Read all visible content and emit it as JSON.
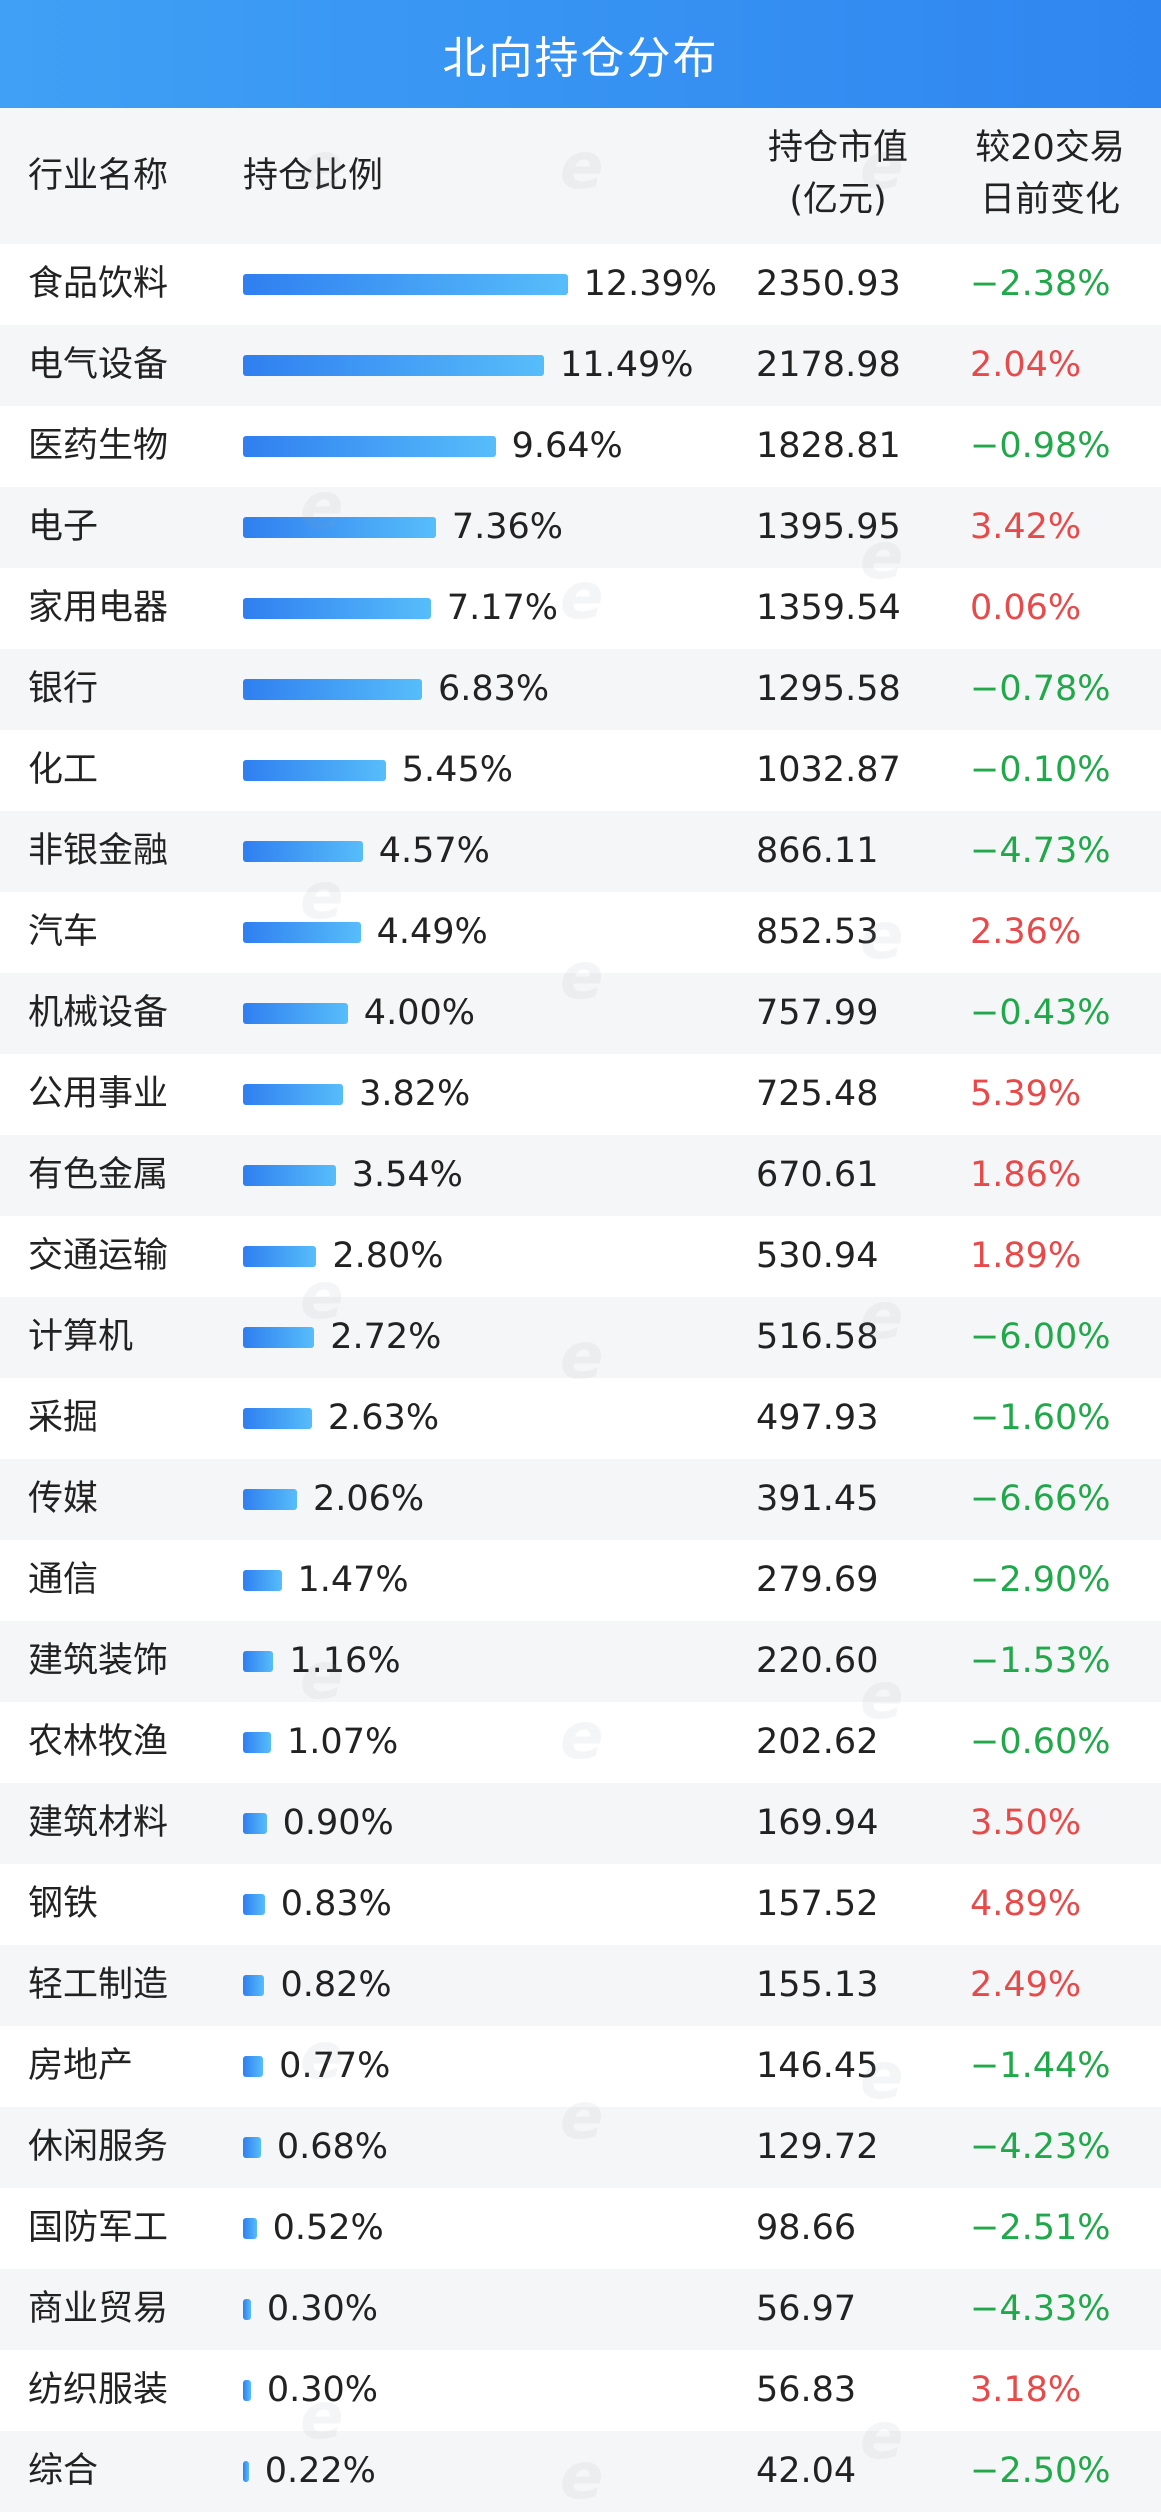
{
  "title": "北向持仓分布",
  "columns": {
    "industry": "行业名称",
    "ratio": "持仓比例",
    "value_line1": "持仓市值",
    "value_line2": "(亿元)",
    "change_line1": "较20交易",
    "change_line2": "日前变化"
  },
  "colors": {
    "bar_start": "#2f7ff0",
    "bar_end": "#57bdfa",
    "positive": "#e64a4a",
    "negative": "#21a84a",
    "header_bg": "#f5f6f7"
  },
  "chart_data": {
    "type": "bar",
    "title": "北向持仓分布",
    "categories": [
      "食品饮料",
      "电气设备",
      "医药生物",
      "电子",
      "家用电器",
      "银行",
      "化工",
      "非银金融",
      "汽车",
      "机械设备",
      "公用事业",
      "有色金属",
      "交通运输",
      "计算机",
      "采掘",
      "传媒",
      "通信",
      "建筑装饰",
      "农林牧渔",
      "建筑材料",
      "钢铁",
      "轻工制造",
      "房地产",
      "休闲服务",
      "国防军工",
      "商业贸易",
      "纺织服装",
      "综合"
    ],
    "ratio_labels": [
      "12.39%",
      "11.49%",
      "9.64%",
      "7.36%",
      "7.17%",
      "6.83%",
      "5.45%",
      "4.57%",
      "4.49%",
      "4.00%",
      "3.82%",
      "3.54%",
      "2.80%",
      "2.72%",
      "2.63%",
      "2.06%",
      "1.47%",
      "1.16%",
      "1.07%",
      "0.90%",
      "0.83%",
      "0.82%",
      "0.77%",
      "0.68%",
      "0.52%",
      "0.30%",
      "0.30%",
      "0.22%"
    ],
    "ratio_values": [
      12.39,
      11.49,
      9.64,
      7.36,
      7.17,
      6.83,
      5.45,
      4.57,
      4.49,
      4.0,
      3.82,
      3.54,
      2.8,
      2.72,
      2.63,
      2.06,
      1.47,
      1.16,
      1.07,
      0.9,
      0.83,
      0.82,
      0.77,
      0.68,
      0.52,
      0.3,
      0.3,
      0.22
    ],
    "market_value": [
      "2350.93",
      "2178.98",
      "1828.81",
      "1395.95",
      "1359.54",
      "1295.58",
      "1032.87",
      "866.11",
      "852.53",
      "757.99",
      "725.48",
      "670.61",
      "530.94",
      "516.58",
      "497.93",
      "391.45",
      "279.69",
      "220.60",
      "202.62",
      "169.94",
      "157.52",
      "155.13",
      "146.45",
      "129.72",
      "98.66",
      "56.97",
      "56.83",
      "42.04"
    ],
    "change": [
      "−2.38%",
      "2.04%",
      "−0.98%",
      "3.42%",
      "0.06%",
      "−0.78%",
      "−0.10%",
      "−4.73%",
      "2.36%",
      "−0.43%",
      "5.39%",
      "1.86%",
      "1.89%",
      "−6.00%",
      "−1.60%",
      "−6.66%",
      "−2.90%",
      "−1.53%",
      "−0.60%",
      "3.50%",
      "4.89%",
      "2.49%",
      "−1.44%",
      "−4.23%",
      "−2.51%",
      "−4.33%",
      "3.18%",
      "−2.50%"
    ]
  }
}
